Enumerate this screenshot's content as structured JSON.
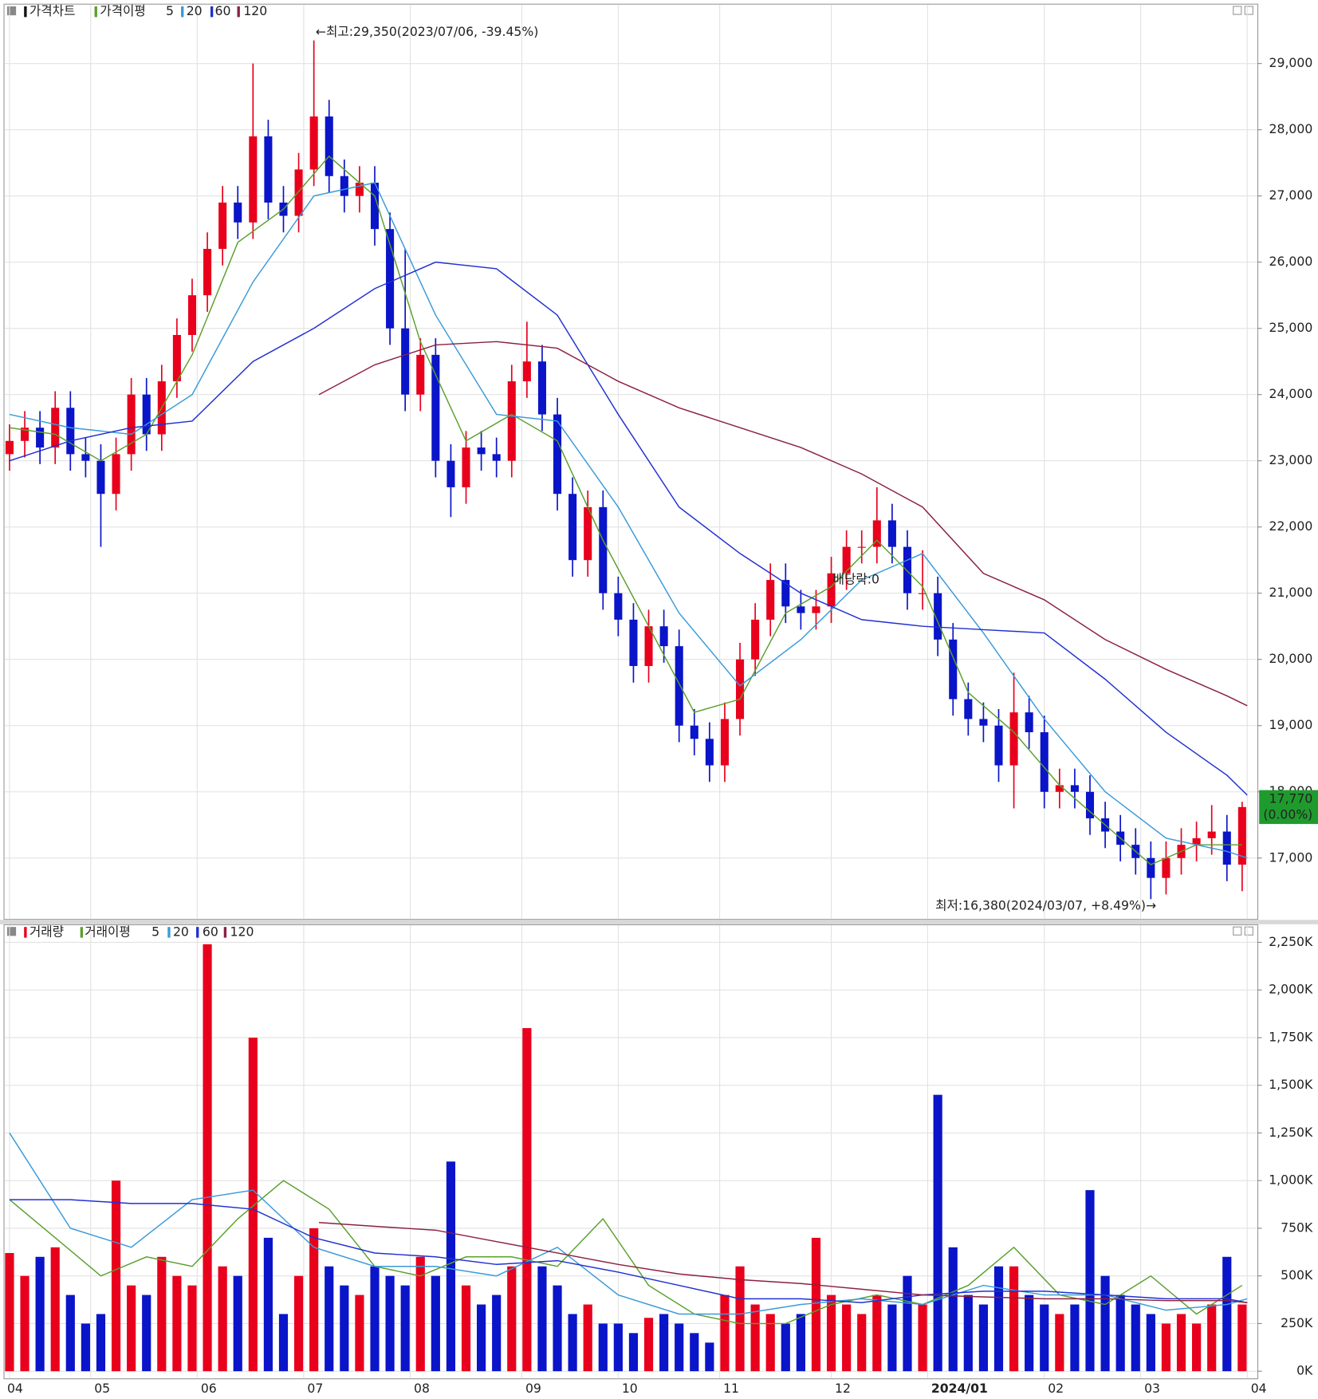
{
  "chart_data": [
    {
      "type": "candlestick",
      "legend": [
        "가격차트",
        "가격이평"
      ],
      "x": [
        0,
        3,
        6,
        9,
        12,
        15,
        18,
        21,
        24,
        27,
        30,
        33,
        36,
        39,
        42,
        45,
        48,
        51,
        54,
        57,
        60,
        63,
        66,
        69,
        72,
        75,
        78,
        81,
        84,
        87,
        90,
        93,
        96,
        99,
        102,
        105,
        108,
        111,
        114,
        117,
        120,
        123,
        126,
        129,
        132,
        135,
        138,
        141,
        144,
        147,
        150,
        153,
        156,
        159,
        162,
        165,
        168,
        171,
        174,
        177,
        180,
        183,
        186,
        189,
        192,
        195,
        198,
        201,
        204,
        207,
        210,
        213,
        216,
        219,
        222,
        225,
        228,
        231,
        234,
        237,
        240,
        243
      ],
      "open": [
        23100,
        23300,
        23500,
        23200,
        23800,
        23100,
        23000,
        22500,
        23100,
        24000,
        23400,
        24200,
        24900,
        25500,
        26200,
        26900,
        26600,
        27900,
        26900,
        26700,
        27400,
        28200,
        27300,
        27000,
        27200,
        26500,
        25000,
        24000,
        24600,
        23000,
        22600,
        23200,
        23100,
        23000,
        24200,
        24500,
        23700,
        22500,
        21500,
        22300,
        21000,
        20600,
        19900,
        20500,
        20200,
        19000,
        18800,
        18400,
        19100,
        20000,
        20600,
        21200,
        20800,
        20700,
        20800,
        21300,
        21700,
        21700,
        22100,
        21700,
        21000,
        21000,
        20300,
        19400,
        19100,
        19000,
        18400,
        19200,
        18900,
        18000,
        18100,
        18000,
        17600,
        17400,
        17200,
        17000,
        16700,
        17000,
        17200,
        17300,
        17400,
        16900
      ],
      "high": [
        23550,
        23750,
        23750,
        24050,
        24050,
        23350,
        23250,
        23350,
        24250,
        24250,
        24450,
        25150,
        25750,
        26450,
        27150,
        27150,
        29000,
        28150,
        27150,
        27650,
        29350,
        28450,
        27550,
        27450,
        27450,
        26750,
        26200,
        24850,
        24850,
        23250,
        23450,
        23450,
        23350,
        24450,
        25100,
        24750,
        23950,
        22750,
        22550,
        22550,
        21250,
        20850,
        20750,
        20750,
        20450,
        19250,
        19050,
        19350,
        20250,
        20850,
        21450,
        21450,
        21050,
        21050,
        21550,
        21950,
        21950,
        22600,
        22350,
        21950,
        21650,
        21250,
        20550,
        19650,
        19350,
        19250,
        19800,
        19450,
        19150,
        18350,
        18350,
        18250,
        17850,
        17650,
        17450,
        17250,
        17250,
        17450,
        17550,
        17800,
        17650,
        17850
      ],
      "low": [
        22850,
        23050,
        22950,
        22950,
        22850,
        22750,
        21700,
        22250,
        22850,
        23150,
        23150,
        23950,
        24650,
        25250,
        25950,
        26350,
        26350,
        26650,
        26450,
        26450,
        27150,
        27050,
        26750,
        26750,
        26250,
        24750,
        23750,
        23750,
        22750,
        22150,
        22350,
        22850,
        22750,
        22750,
        23950,
        23450,
        22250,
        21250,
        21250,
        20750,
        20350,
        19650,
        19650,
        19950,
        18750,
        18550,
        18150,
        18150,
        18850,
        19750,
        20350,
        20550,
        20450,
        20450,
        20550,
        21050,
        21450,
        21450,
        21450,
        20750,
        20750,
        20050,
        19150,
        18850,
        18750,
        18150,
        17750,
        18650,
        17750,
        17750,
        17750,
        17350,
        17150,
        16950,
        16750,
        16380,
        16450,
        16750,
        16950,
        17050,
        16650,
        16500
      ],
      "close": [
        23300,
        23500,
        23200,
        23800,
        23100,
        23000,
        22500,
        23100,
        24000,
        23400,
        24200,
        24900,
        25500,
        26200,
        26900,
        26600,
        27900,
        26900,
        26700,
        27400,
        28200,
        27300,
        27000,
        27200,
        26500,
        25000,
        24000,
        24600,
        23000,
        22600,
        23200,
        23100,
        23000,
        24200,
        24500,
        23700,
        22500,
        21500,
        22300,
        21000,
        20600,
        19900,
        20500,
        20200,
        19000,
        18800,
        18400,
        19100,
        20000,
        20600,
        21200,
        20800,
        20700,
        20800,
        21300,
        21700,
        21700,
        22100,
        21700,
        21000,
        21000,
        20300,
        19400,
        19100,
        19000,
        18400,
        19200,
        18900,
        18000,
        18100,
        18000,
        17600,
        17400,
        17200,
        17000,
        16700,
        17000,
        17200,
        17300,
        17400,
        16900,
        17770
      ],
      "up_color": "#e8001c",
      "down_color": "#0a14c8",
      "ma_series": [
        {
          "name": "5",
          "color": "#5aa02c",
          "x": [
            0,
            9,
            18,
            27,
            36,
            45,
            54,
            63,
            72,
            81,
            90,
            99,
            108,
            117,
            126,
            135,
            144,
            153,
            162,
            171,
            180,
            189,
            198,
            207,
            216,
            225,
            234,
            243
          ],
          "values": [
            23500,
            23400,
            23000,
            23400,
            24600,
            26300,
            26800,
            27600,
            27000,
            24800,
            23300,
            23700,
            23300,
            21800,
            20500,
            19200,
            19400,
            20700,
            21100,
            21800,
            21100,
            19500,
            18900,
            18100,
            17500,
            16900,
            17200,
            17200
          ]
        },
        {
          "name": "20",
          "color": "#3a9ad9",
          "x": [
            0,
            12,
            24,
            36,
            48,
            60,
            72,
            84,
            96,
            108,
            120,
            132,
            144,
            156,
            168,
            180,
            192,
            204,
            216,
            228,
            240,
            244
          ],
          "values": [
            23700,
            23500,
            23400,
            24000,
            25700,
            27000,
            27200,
            25200,
            23700,
            23600,
            22300,
            20700,
            19600,
            20300,
            21200,
            21600,
            20400,
            19100,
            18000,
            17300,
            17100,
            17000
          ]
        },
        {
          "name": "60",
          "color": "#2030d0",
          "x": [
            0,
            12,
            24,
            36,
            48,
            60,
            72,
            84,
            96,
            108,
            120,
            132,
            144,
            156,
            168,
            180,
            192,
            204,
            216,
            228,
            240,
            244
          ],
          "values": [
            23000,
            23300,
            23500,
            23600,
            24500,
            25000,
            25600,
            26000,
            25900,
            25200,
            23700,
            22300,
            21600,
            21000,
            20600,
            20500,
            20450,
            20400,
            19700,
            18900,
            18250,
            17950
          ]
        },
        {
          "name": "120",
          "color": "#8b2040",
          "x": [
            61,
            72,
            84,
            96,
            108,
            120,
            132,
            144,
            156,
            168,
            180,
            192,
            204,
            216,
            228,
            240,
            244
          ],
          "values": [
            24000,
            24450,
            24750,
            24800,
            24700,
            24200,
            23800,
            23500,
            23200,
            22800,
            22300,
            21300,
            20900,
            20300,
            19850,
            19450,
            19300
          ]
        }
      ],
      "xlim": [
        -1,
        246
      ],
      "xticks": [
        {
          "value": 0,
          "label": "04"
        },
        {
          "value": 16,
          "label": "05"
        },
        {
          "value": 37,
          "label": "06"
        },
        {
          "value": 58,
          "label": "07"
        },
        {
          "value": 79,
          "label": "08"
        },
        {
          "value": 101,
          "label": "09"
        },
        {
          "value": 120,
          "label": "10"
        },
        {
          "value": 140,
          "label": "11"
        },
        {
          "value": 162,
          "label": "12"
        },
        {
          "value": 181,
          "label": "2024/01"
        },
        {
          "value": 204,
          "label": "02"
        },
        {
          "value": 223,
          "label": "03"
        },
        {
          "value": 244,
          "label": "04"
        }
      ],
      "ylim": [
        16080,
        29890
      ],
      "yticks": [
        {
          "value": 17000,
          "label": "17,000"
        },
        {
          "value": 18000,
          "label": "18,000"
        },
        {
          "value": 19000,
          "label": "19,000"
        },
        {
          "value": 20000,
          "label": "20,000"
        },
        {
          "value": 21000,
          "label": "21,000"
        },
        {
          "value": 22000,
          "label": "22,000"
        },
        {
          "value": 23000,
          "label": "23,000"
        },
        {
          "value": 24000,
          "label": "24,000"
        },
        {
          "value": 25000,
          "label": "25,000"
        },
        {
          "value": 26000,
          "label": "26,000"
        },
        {
          "value": 27000,
          "label": "27,000"
        },
        {
          "value": 28000,
          "label": "28,000"
        },
        {
          "value": 29000,
          "label": "29,000"
        }
      ],
      "grid": true,
      "annotations": [
        "←최고:29,350(2023/07/06, -39.45%)",
        "최저:16,380(2024/03/07, +8.49%)→",
        "배당락:0"
      ],
      "last_price": {
        "label": "17,770",
        "change": "(0.00%)",
        "color": "#1f9b2e"
      }
    },
    {
      "type": "bar",
      "legend": [
        "거래량",
        "거래이평"
      ],
      "values": [
        620000,
        500000,
        600000,
        650000,
        400000,
        250000,
        300000,
        1000000,
        450000,
        400000,
        600000,
        500000,
        450000,
        2240000,
        550000,
        500000,
        1750000,
        700000,
        300000,
        500000,
        750000,
        550000,
        450000,
        400000,
        550000,
        500000,
        450000,
        600000,
        500000,
        1100000,
        450000,
        350000,
        400000,
        550000,
        1800000,
        550000,
        450000,
        300000,
        350000,
        250000,
        250000,
        200000,
        280000,
        300000,
        250000,
        200000,
        150000,
        400000,
        550000,
        350000,
        300000,
        250000,
        300000,
        700000,
        400000,
        350000,
        300000,
        400000,
        350000,
        500000,
        350000,
        1450000,
        650000,
        400000,
        350000,
        550000,
        550000,
        400000,
        350000,
        300000,
        350000,
        950000,
        500000,
        400000,
        350000,
        300000,
        250000,
        300000,
        250000,
        350000,
        600000,
        350000
      ],
      "ma_series": [
        {
          "name": "5",
          "color": "#5aa02c",
          "x": [
            0,
            9,
            18,
            27,
            36,
            45,
            54,
            63,
            72,
            81,
            90,
            99,
            108,
            117,
            126,
            135,
            144,
            153,
            162,
            171,
            180,
            189,
            198,
            207,
            216,
            225,
            234,
            243
          ],
          "values": [
            900000,
            700000,
            500000,
            600000,
            550000,
            800000,
            1000000,
            850000,
            550000,
            500000,
            600000,
            600000,
            550000,
            800000,
            450000,
            300000,
            250000,
            250000,
            350000,
            400000,
            350000,
            450000,
            650000,
            400000,
            350000,
            500000,
            300000,
            450000
          ]
        },
        {
          "name": "20",
          "color": "#3a9ad9",
          "x": [
            0,
            12,
            24,
            36,
            48,
            60,
            72,
            84,
            96,
            108,
            120,
            132,
            144,
            156,
            168,
            180,
            192,
            204,
            216,
            228,
            240,
            244
          ],
          "values": [
            1250000,
            750000,
            650000,
            900000,
            950000,
            650000,
            550000,
            550000,
            500000,
            650000,
            400000,
            300000,
            300000,
            350000,
            380000,
            350000,
            450000,
            400000,
            400000,
            320000,
            350000,
            380000
          ]
        },
        {
          "name": "60",
          "color": "#2030d0",
          "x": [
            0,
            12,
            24,
            36,
            48,
            60,
            72,
            84,
            96,
            108,
            120,
            132,
            144,
            156,
            168,
            180,
            192,
            204,
            216,
            228,
            240,
            244
          ],
          "values": [
            900000,
            900000,
            880000,
            880000,
            850000,
            700000,
            620000,
            600000,
            560000,
            580000,
            520000,
            450000,
            380000,
            380000,
            360000,
            400000,
            420000,
            420000,
            400000,
            380000,
            380000,
            360000
          ]
        },
        {
          "name": "120",
          "color": "#8b2040",
          "x": [
            61,
            72,
            84,
            96,
            108,
            120,
            132,
            144,
            156,
            168,
            180,
            192,
            204,
            216,
            228,
            240,
            244
          ],
          "values": [
            780000,
            760000,
            740000,
            680000,
            620000,
            560000,
            510000,
            480000,
            460000,
            430000,
            400000,
            390000,
            380000,
            380000,
            370000,
            370000,
            360000
          ]
        }
      ],
      "ylim": [
        0,
        2340000
      ],
      "yticks": [
        {
          "value": 0,
          "label": "0K"
        },
        {
          "value": 250000,
          "label": "250K"
        },
        {
          "value": 500000,
          "label": "500K"
        },
        {
          "value": 750000,
          "label": "750K"
        },
        {
          "value": 1000000,
          "label": "1,000K"
        },
        {
          "value": 1250000,
          "label": "1,250K"
        },
        {
          "value": 1500000,
          "label": "1,500K"
        },
        {
          "value": 1750000,
          "label": "1,750K"
        },
        {
          "value": 2000000,
          "label": "2,000K"
        },
        {
          "value": 2250000,
          "label": "2,250K"
        }
      ],
      "grid": true
    }
  ]
}
